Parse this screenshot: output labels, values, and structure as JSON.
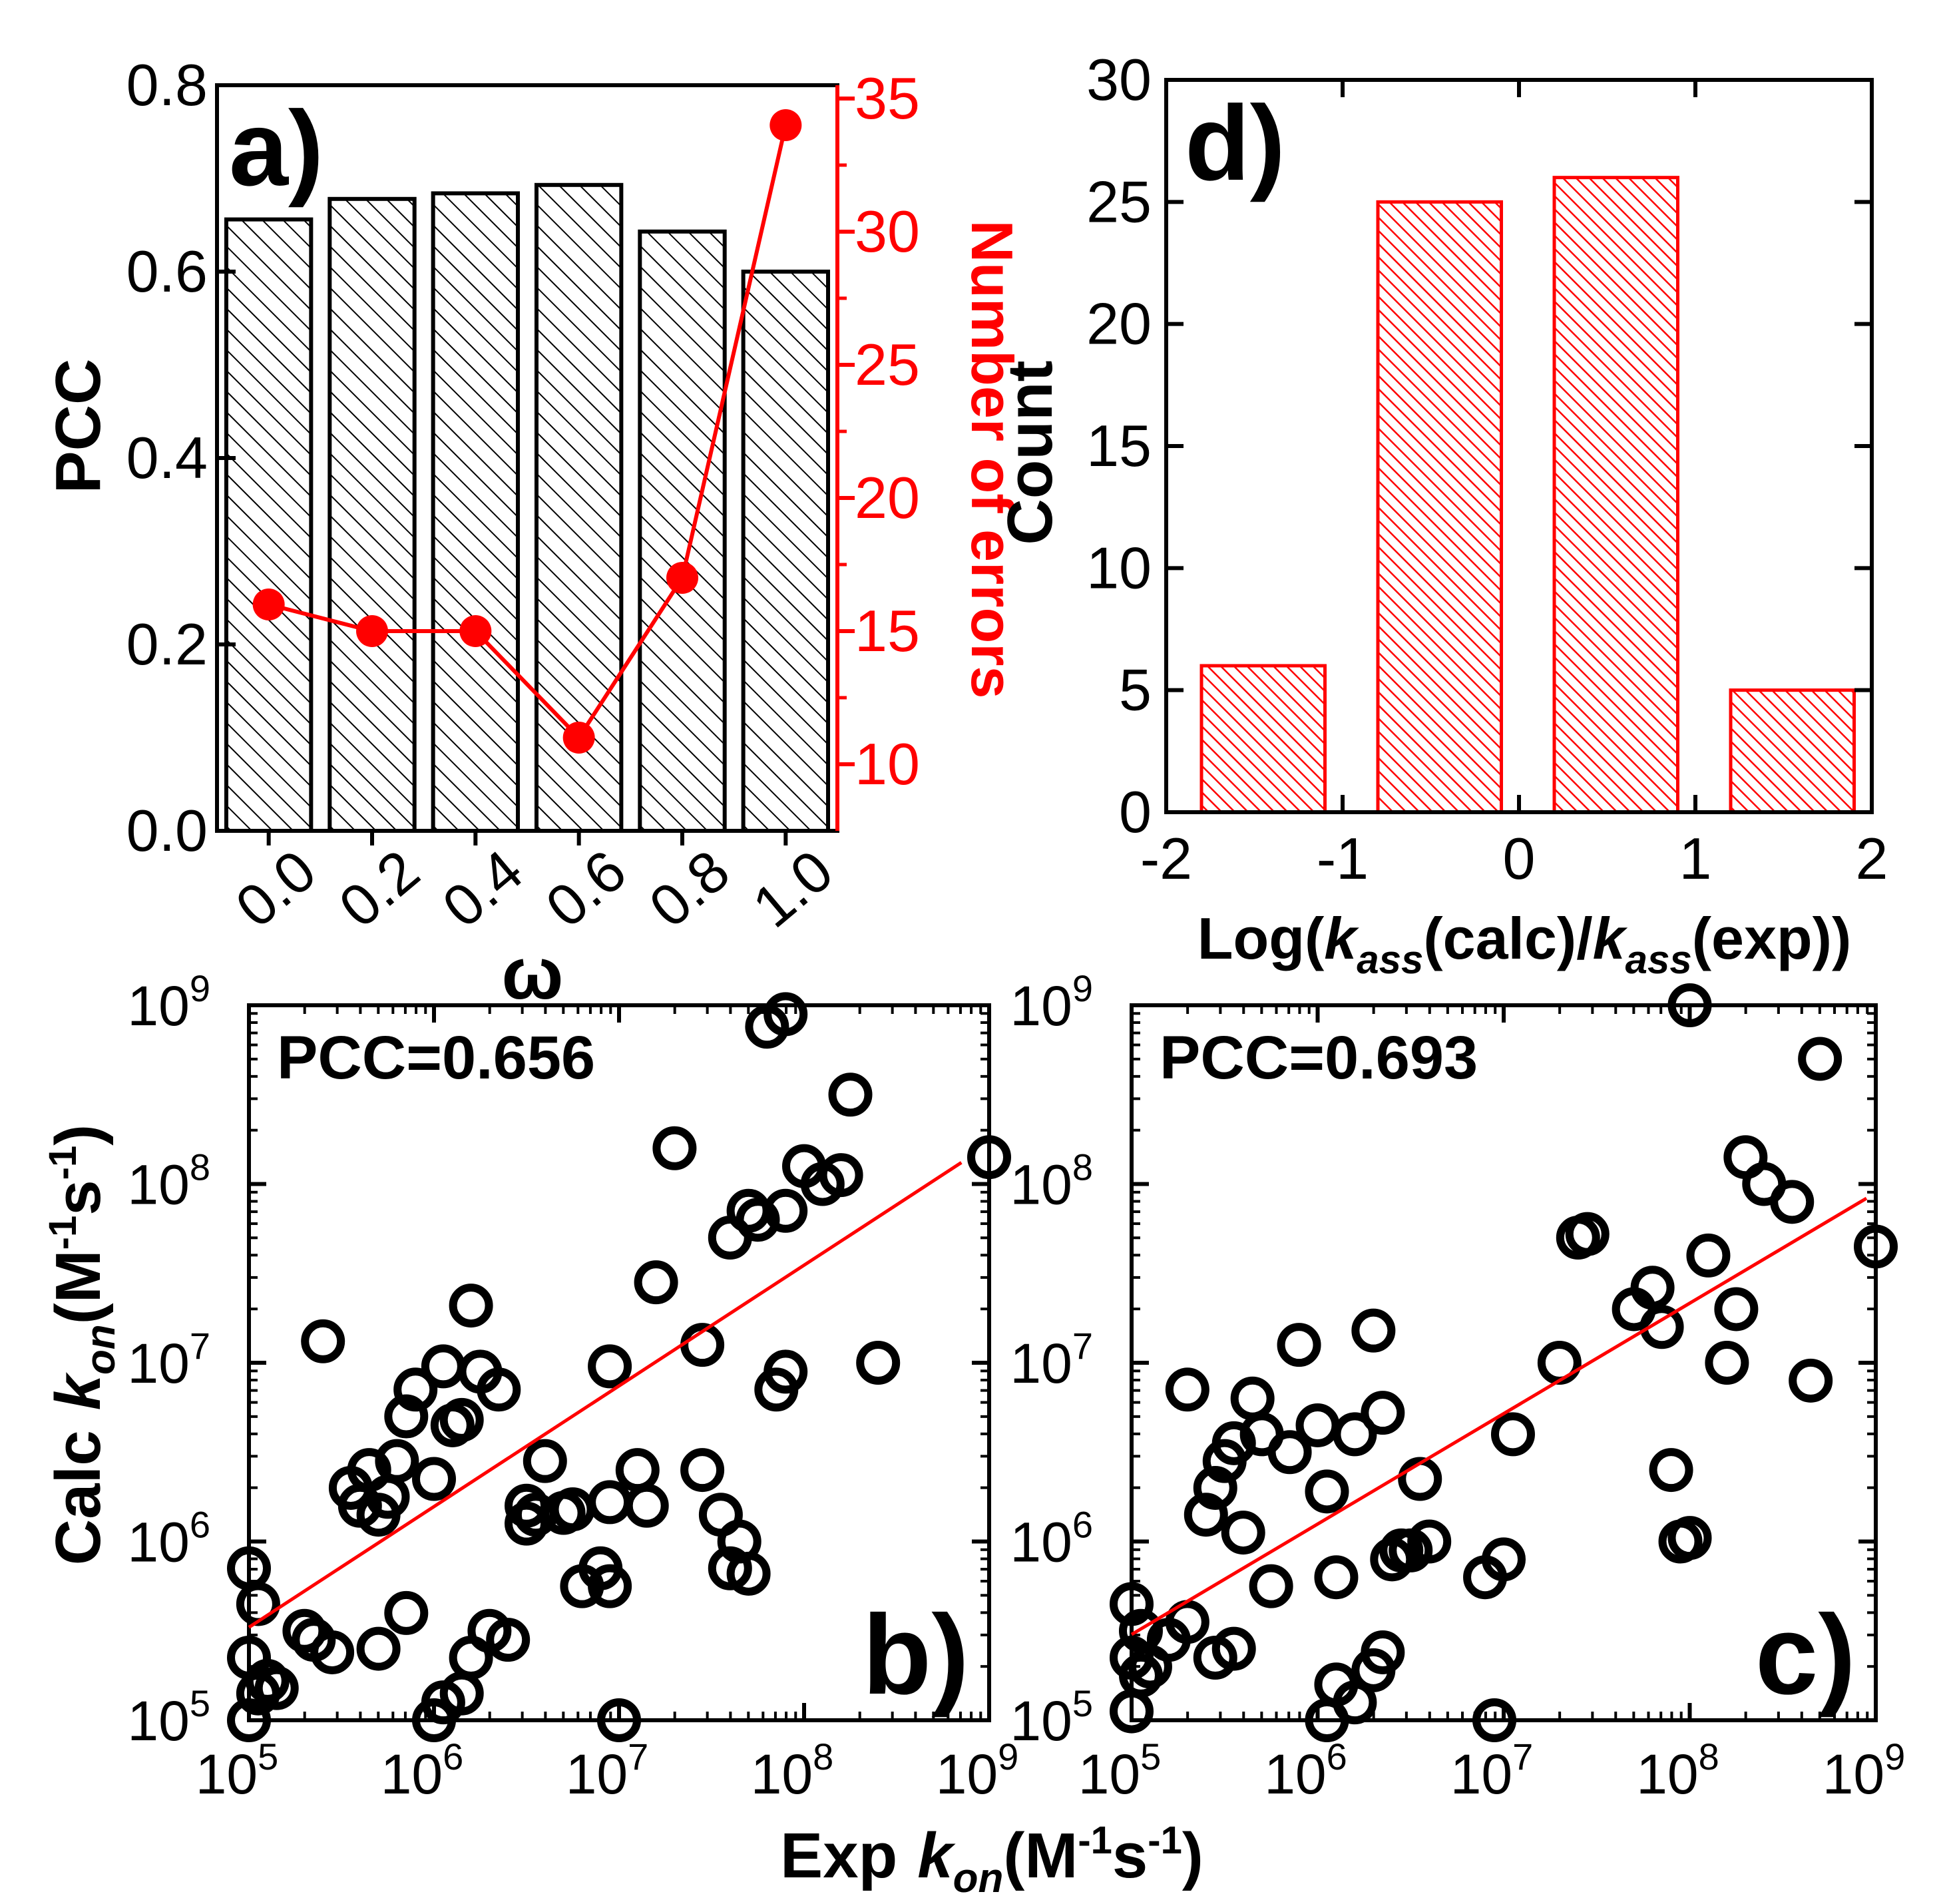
{
  "chart_data": [
    {
      "panel": "a",
      "type": "bar",
      "panel_label": "a)",
      "xlabel": "ω",
      "ylabel": "PCC",
      "y2label": "Number of errors",
      "categories": [
        "0.0",
        "0.2",
        "0.4",
        "0.6",
        "0.8",
        "1.0"
      ],
      "ylim": [
        0,
        0.8
      ],
      "y2lim": [
        7.5,
        35.5
      ],
      "yticks": [
        "0.0",
        "0.2",
        "0.4",
        "0.6",
        "0.8"
      ],
      "y2ticks": [
        "10",
        "15",
        "20",
        "25",
        "30",
        "35"
      ],
      "series": [
        {
          "name": "PCC",
          "axis": "left",
          "kind": "bar",
          "values": [
            0.656,
            0.678,
            0.684,
            0.693,
            0.643,
            0.6
          ]
        },
        {
          "name": "Number of errors",
          "axis": "right",
          "kind": "line",
          "values": [
            16,
            15,
            15,
            11,
            17,
            34
          ]
        }
      ],
      "colors": {
        "bars": "#000000",
        "errors": "#ff0000"
      }
    },
    {
      "panel": "d",
      "type": "bar",
      "panel_label": "d)",
      "xlabel_parts": [
        "Log(",
        "k",
        "ass",
        "(calc)/",
        "k",
        "ass",
        "(exp))"
      ],
      "ylabel": "Count",
      "xlim": [
        -2,
        2
      ],
      "ylim": [
        0,
        30
      ],
      "xticks": [
        "-2",
        "-1",
        "0",
        "1",
        "2"
      ],
      "yticks": [
        "0",
        "5",
        "10",
        "15",
        "20",
        "25",
        "30"
      ],
      "bins": [
        {
          "from": -1.8,
          "to": -1.1,
          "count": 6
        },
        {
          "from": -0.8,
          "to": -0.1,
          "count": 25
        },
        {
          "from": 0.2,
          "to": 0.9,
          "count": 26
        },
        {
          "from": 1.2,
          "to": 1.9,
          "count": 5
        }
      ],
      "colors": {
        "bars": "#ff0000"
      }
    },
    {
      "panel": "b",
      "type": "scatter",
      "panel_label": "b)",
      "annotation": "PCC=0.656",
      "xscale": "log",
      "yscale": "log",
      "xlim_log10": [
        5,
        9
      ],
      "ylim_log10": [
        5,
        9
      ],
      "tick_exponents": [
        "5",
        "6",
        "7",
        "8",
        "9"
      ],
      "tick_base": "10",
      "points_log10": [
        [
          5.0,
          5.85
        ],
        [
          5.05,
          5.65
        ],
        [
          5.0,
          5.35
        ],
        [
          5.05,
          5.15
        ],
        [
          5.1,
          5.22
        ],
        [
          5.15,
          5.18
        ],
        [
          5.0,
          5.0
        ],
        [
          5.3,
          5.5
        ],
        [
          5.35,
          5.45
        ],
        [
          5.45,
          5.38
        ],
        [
          5.55,
          6.3
        ],
        [
          5.6,
          6.2
        ],
        [
          5.65,
          6.4
        ],
        [
          5.7,
          6.15
        ],
        [
          5.75,
          6.25
        ],
        [
          5.85,
          6.7
        ],
        [
          5.9,
          6.85
        ],
        [
          5.4,
          7.12
        ],
        [
          5.85,
          5.6
        ],
        [
          5.7,
          5.4
        ],
        [
          5.8,
          6.45
        ],
        [
          6.0,
          6.35
        ],
        [
          6.05,
          6.98
        ],
        [
          6.1,
          6.65
        ],
        [
          6.15,
          6.68
        ],
        [
          6.2,
          7.32
        ],
        [
          6.25,
          6.95
        ],
        [
          6.35,
          6.85
        ],
        [
          6.5,
          6.1
        ],
        [
          6.5,
          6.2
        ],
        [
          6.6,
          6.45
        ],
        [
          6.7,
          6.16
        ],
        [
          6.75,
          6.18
        ],
        [
          6.8,
          5.75
        ],
        [
          6.9,
          5.85
        ],
        [
          6.95,
          5.75
        ],
        [
          6.95,
          6.98
        ],
        [
          6.95,
          6.22
        ],
        [
          7.1,
          6.4
        ],
        [
          7.15,
          6.2
        ],
        [
          6.0,
          5.0
        ],
        [
          6.05,
          5.1
        ],
        [
          6.15,
          5.15
        ],
        [
          6.2,
          5.35
        ],
        [
          6.3,
          5.5
        ],
        [
          6.4,
          5.45
        ],
        [
          6.55,
          6.15
        ],
        [
          7.2,
          7.45
        ],
        [
          7.45,
          6.4
        ],
        [
          7.55,
          6.15
        ],
        [
          7.6,
          5.85
        ],
        [
          7.65,
          6.0
        ],
        [
          7.7,
          5.82
        ],
        [
          7.3,
          8.2
        ],
        [
          7.45,
          7.1
        ],
        [
          7.6,
          7.7
        ],
        [
          7.7,
          7.85
        ],
        [
          7.85,
          6.85
        ],
        [
          7.9,
          6.95
        ],
        [
          7.9,
          7.85
        ],
        [
          8.0,
          8.1
        ],
        [
          8.1,
          8.0
        ],
        [
          8.2,
          8.05
        ],
        [
          8.25,
          8.5
        ],
        [
          8.4,
          7.0
        ],
        [
          9.0,
          8.15
        ],
        [
          7.8,
          8.88
        ],
        [
          7.9,
          8.95
        ],
        [
          7.75,
          7.8
        ],
        [
          7.0,
          5.0
        ]
      ],
      "fit_log10": [
        [
          5.0,
          5.52
        ],
        [
          8.85,
          8.12
        ]
      ],
      "colors": {
        "points": "#000000",
        "fit": "#ff0000"
      }
    },
    {
      "panel": "c",
      "type": "scatter",
      "panel_label": "c)",
      "annotation": "PCC=0.693",
      "xscale": "log",
      "yscale": "log",
      "xlim_log10": [
        5,
        9
      ],
      "ylim_log10": [
        5,
        9
      ],
      "tick_exponents": [
        "5",
        "6",
        "7",
        "8",
        "9"
      ],
      "tick_base": "10",
      "points_log10": [
        [
          5.0,
          5.65
        ],
        [
          5.05,
          5.5
        ],
        [
          5.0,
          5.35
        ],
        [
          5.05,
          5.25
        ],
        [
          5.1,
          5.3
        ],
        [
          5.2,
          5.45
        ],
        [
          5.3,
          5.55
        ],
        [
          5.0,
          5.05
        ],
        [
          5.45,
          5.35
        ],
        [
          5.55,
          5.4
        ],
        [
          5.3,
          6.85
        ],
        [
          5.4,
          6.15
        ],
        [
          5.45,
          6.3
        ],
        [
          5.5,
          6.45
        ],
        [
          5.55,
          6.55
        ],
        [
          5.6,
          6.05
        ],
        [
          5.65,
          6.8
        ],
        [
          5.7,
          6.6
        ],
        [
          5.75,
          5.75
        ],
        [
          5.85,
          6.5
        ],
        [
          5.9,
          7.1
        ],
        [
          6.0,
          6.65
        ],
        [
          6.05,
          6.28
        ],
        [
          6.1,
          5.8
        ],
        [
          6.2,
          6.6
        ],
        [
          6.3,
          7.18
        ],
        [
          6.35,
          6.72
        ],
        [
          6.6,
          6.0
        ],
        [
          6.05,
          5.0
        ],
        [
          6.1,
          5.2
        ],
        [
          6.2,
          5.1
        ],
        [
          6.3,
          5.28
        ],
        [
          6.35,
          5.38
        ],
        [
          6.4,
          5.9
        ],
        [
          6.45,
          5.95
        ],
        [
          6.5,
          5.95
        ],
        [
          6.55,
          6.35
        ],
        [
          6.9,
          5.8
        ],
        [
          7.0,
          5.9
        ],
        [
          7.05,
          6.6
        ],
        [
          7.3,
          7.0
        ],
        [
          7.4,
          7.7
        ],
        [
          7.45,
          7.72
        ],
        [
          7.7,
          7.3
        ],
        [
          7.8,
          7.42
        ],
        [
          7.85,
          7.2
        ],
        [
          7.9,
          6.4
        ],
        [
          7.95,
          6.0
        ],
        [
          8.0,
          6.02
        ],
        [
          8.1,
          7.6
        ],
        [
          8.2,
          7.0
        ],
        [
          8.25,
          7.3
        ],
        [
          8.3,
          8.15
        ],
        [
          8.4,
          8.0
        ],
        [
          8.55,
          7.9
        ],
        [
          8.65,
          6.9
        ],
        [
          8.7,
          8.7
        ],
        [
          8.0,
          9.0
        ],
        [
          9.0,
          7.65
        ],
        [
          6.95,
          5.0
        ]
      ],
      "fit_log10": [
        [
          5.0,
          5.48
        ],
        [
          8.95,
          7.92
        ]
      ],
      "colors": {
        "points": "#000000",
        "fit": "#ff0000"
      }
    }
  ],
  "shared_labels": {
    "left_axis_prefix": "Calc",
    "left_axis_k": "k",
    "left_axis_sub": "on",
    "bottom_axis_prefix": "Exp",
    "bottom_axis_k": "k",
    "bottom_axis_sub": "on",
    "unit_open": "(M",
    "unit_exp1": "-1",
    "unit_mid": "s",
    "unit_exp2": "-1",
    "unit_close": ")"
  }
}
